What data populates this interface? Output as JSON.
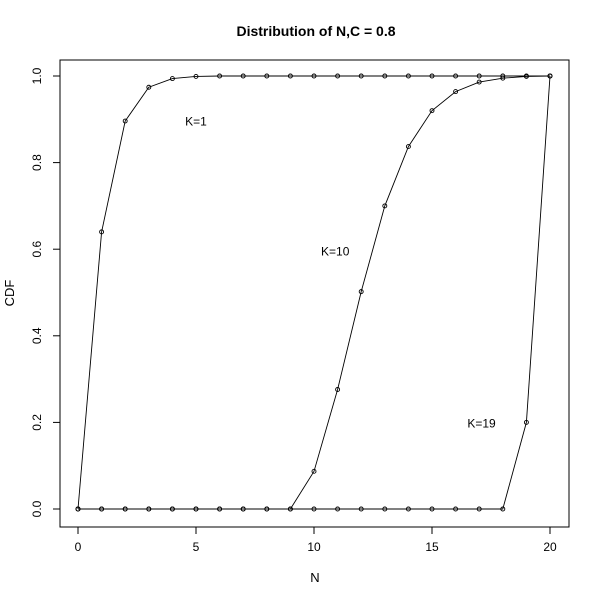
{
  "chart_data": {
    "type": "line",
    "title": "Distribution of N,C = 0.8",
    "xlabel": "N",
    "ylabel": "CDF",
    "xlim": [
      0,
      20
    ],
    "ylim": [
      0,
      1
    ],
    "x_ticks": [
      "0",
      "5",
      "10",
      "15",
      "20"
    ],
    "y_ticks": [
      "0.0",
      "0.2",
      "0.4",
      "0.6",
      "0.8",
      "1.0"
    ],
    "grid": false,
    "markers": "open-circle",
    "x": [
      0,
      1,
      2,
      3,
      4,
      5,
      6,
      7,
      8,
      9,
      10,
      11,
      12,
      13,
      14,
      15,
      16,
      17,
      18,
      19,
      20
    ],
    "series": [
      {
        "label": "K=1",
        "values": [
          0,
          0.64,
          0.896,
          0.974,
          0.994,
          0.999,
          1,
          1,
          1,
          1,
          1,
          1,
          1,
          1,
          1,
          1,
          1,
          1,
          1,
          1,
          1
        ]
      },
      {
        "label": "K=10",
        "values": [
          0,
          0,
          0,
          0,
          0,
          0,
          0,
          0,
          0,
          0,
          0.087,
          0.276,
          0.502,
          0.7,
          0.837,
          0.92,
          0.964,
          0.986,
          0.995,
          0.999,
          1
        ]
      },
      {
        "label": "K=19",
        "values": [
          0,
          0,
          0,
          0,
          0,
          0,
          0,
          0,
          0,
          0,
          0,
          0,
          0,
          0,
          0,
          0,
          0,
          0,
          0,
          0.2,
          1
        ]
      }
    ],
    "annotations": [
      {
        "text": "K=1",
        "x": 5.0,
        "y": 0.895
      },
      {
        "text": "K=10",
        "x": 10.9,
        "y": 0.595
      },
      {
        "text": "K=19",
        "x": 17.1,
        "y": 0.197
      }
    ]
  }
}
